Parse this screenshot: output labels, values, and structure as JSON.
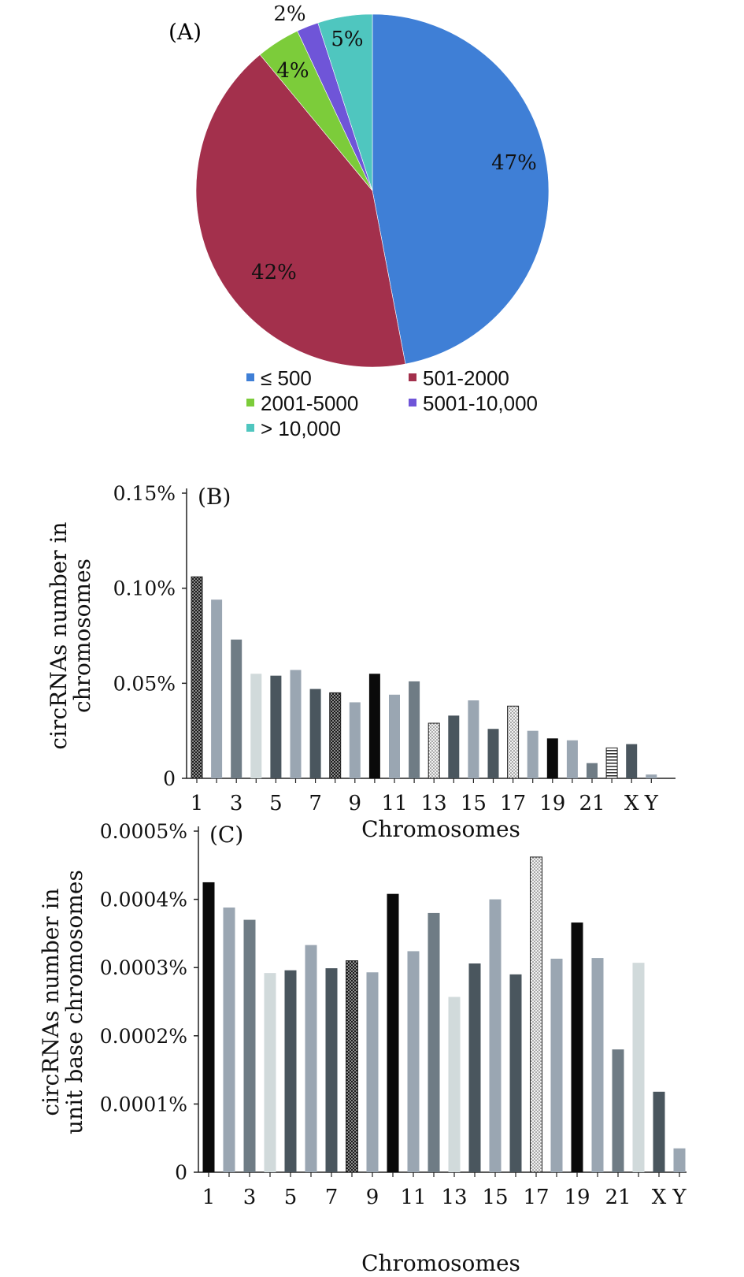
{
  "chart_data": [
    {
      "type": "pie",
      "panel_label": "(A)",
      "slices": [
        {
          "label": "≤ 500",
          "value": 47,
          "text": "47%",
          "color": "#3f7fd6"
        },
        {
          "label": "501-2000",
          "value": 42,
          "text": "42%",
          "color": "#a3304c"
        },
        {
          "label": "2001-5000",
          "value": 4,
          "text": "4%",
          "color": "#7ccc3a"
        },
        {
          "label": "5001-10,000",
          "value": 2,
          "text": "2%",
          "color": "#6f55d8"
        },
        {
          "label": "> 10,000",
          "value": 5,
          "text": "5%",
          "color": "#4fc6bf"
        }
      ],
      "legend_position": "bottom"
    },
    {
      "type": "bar",
      "panel_label": "(B)",
      "title": "",
      "xlabel": "Chromosomes",
      "ylabel": [
        "circRNAs number in",
        "chromosomes"
      ],
      "ylim": [
        0,
        0.15
      ],
      "yticks": [
        0,
        0.05,
        0.1,
        0.15
      ],
      "ytick_labels": [
        "0",
        "0.05%",
        "0.10%",
        "0.15%"
      ],
      "categories": [
        "1",
        "2",
        "3",
        "4",
        "5",
        "6",
        "7",
        "8",
        "9",
        "10",
        "11",
        "12",
        "13",
        "14",
        "15",
        "16",
        "17",
        "18",
        "19",
        "20",
        "21",
        "22",
        "X",
        "Y"
      ],
      "xtick_labels": [
        "1",
        "",
        "3",
        "",
        "5",
        "",
        "7",
        "",
        "9",
        "",
        "11",
        "",
        "13",
        "",
        "15",
        "",
        "17",
        "",
        "19",
        "",
        "21",
        "",
        "X",
        "Y"
      ],
      "values": [
        0.106,
        0.094,
        0.073,
        0.055,
        0.054,
        0.057,
        0.047,
        0.045,
        0.04,
        0.055,
        0.044,
        0.051,
        0.029,
        0.033,
        0.041,
        0.026,
        0.038,
        0.025,
        0.021,
        0.02,
        0.008,
        0.016,
        0.018,
        0.002
      ],
      "styles": [
        "checker",
        "gray-light",
        "gray-mid",
        "gray-pale",
        "gray-dark",
        "gray-light",
        "gray-dark",
        "checker",
        "gray-light",
        "black",
        "gray-light",
        "gray-mid",
        "dots",
        "gray-dark",
        "gray-light",
        "gray-dark",
        "dots",
        "gray-light",
        "black",
        "gray-light",
        "gray-mid",
        "stripes",
        "gray-dark",
        "gray-light"
      ]
    },
    {
      "type": "bar",
      "panel_label": "(C)",
      "title": "",
      "xlabel": "Chromosomes",
      "ylabel": [
        "circRNAs number in",
        "unit base chromosomes"
      ],
      "ylim": [
        0,
        0.0005
      ],
      "yticks": [
        0,
        0.0001,
        0.0002,
        0.0003,
        0.0004,
        0.0005
      ],
      "ytick_labels": [
        "0",
        "0.0001%",
        "0.0002%",
        "0.0003%",
        "0.0004%",
        "0.0005%"
      ],
      "categories": [
        "1",
        "2",
        "3",
        "4",
        "5",
        "6",
        "7",
        "8",
        "9",
        "10",
        "11",
        "12",
        "13",
        "14",
        "15",
        "16",
        "17",
        "18",
        "19",
        "20",
        "21",
        "22",
        "X",
        "Y"
      ],
      "xtick_labels": [
        "1",
        "",
        "3",
        "",
        "5",
        "",
        "7",
        "",
        "9",
        "",
        "11",
        "",
        "13",
        "",
        "15",
        "",
        "17",
        "",
        "19",
        "",
        "21",
        "",
        "X",
        "Y"
      ],
      "values": [
        0.000425,
        0.000388,
        0.00037,
        0.000292,
        0.000296,
        0.000333,
        0.000299,
        0.00031,
        0.000293,
        0.000408,
        0.000324,
        0.00038,
        0.000257,
        0.000306,
        0.0004,
        0.00029,
        0.000462,
        0.000313,
        0.000366,
        0.000314,
        0.00018,
        0.000307,
        0.000118,
        3.5e-05
      ],
      "styles": [
        "black",
        "gray-light",
        "gray-mid",
        "gray-pale",
        "gray-dark",
        "gray-light",
        "gray-dark",
        "checker",
        "gray-light",
        "black",
        "gray-light",
        "gray-mid",
        "gray-pale",
        "gray-dark",
        "gray-light",
        "gray-dark",
        "dots",
        "gray-light",
        "black",
        "gray-light",
        "gray-mid",
        "gray-pale",
        "gray-dark",
        "gray-light"
      ]
    }
  ],
  "colors": {
    "gray-light": "#9aa6b2",
    "gray-mid": "#6f7c85",
    "gray-pale": "#d1dadb",
    "gray-dark": "#4a565e",
    "black": "#0a0a0a"
  }
}
